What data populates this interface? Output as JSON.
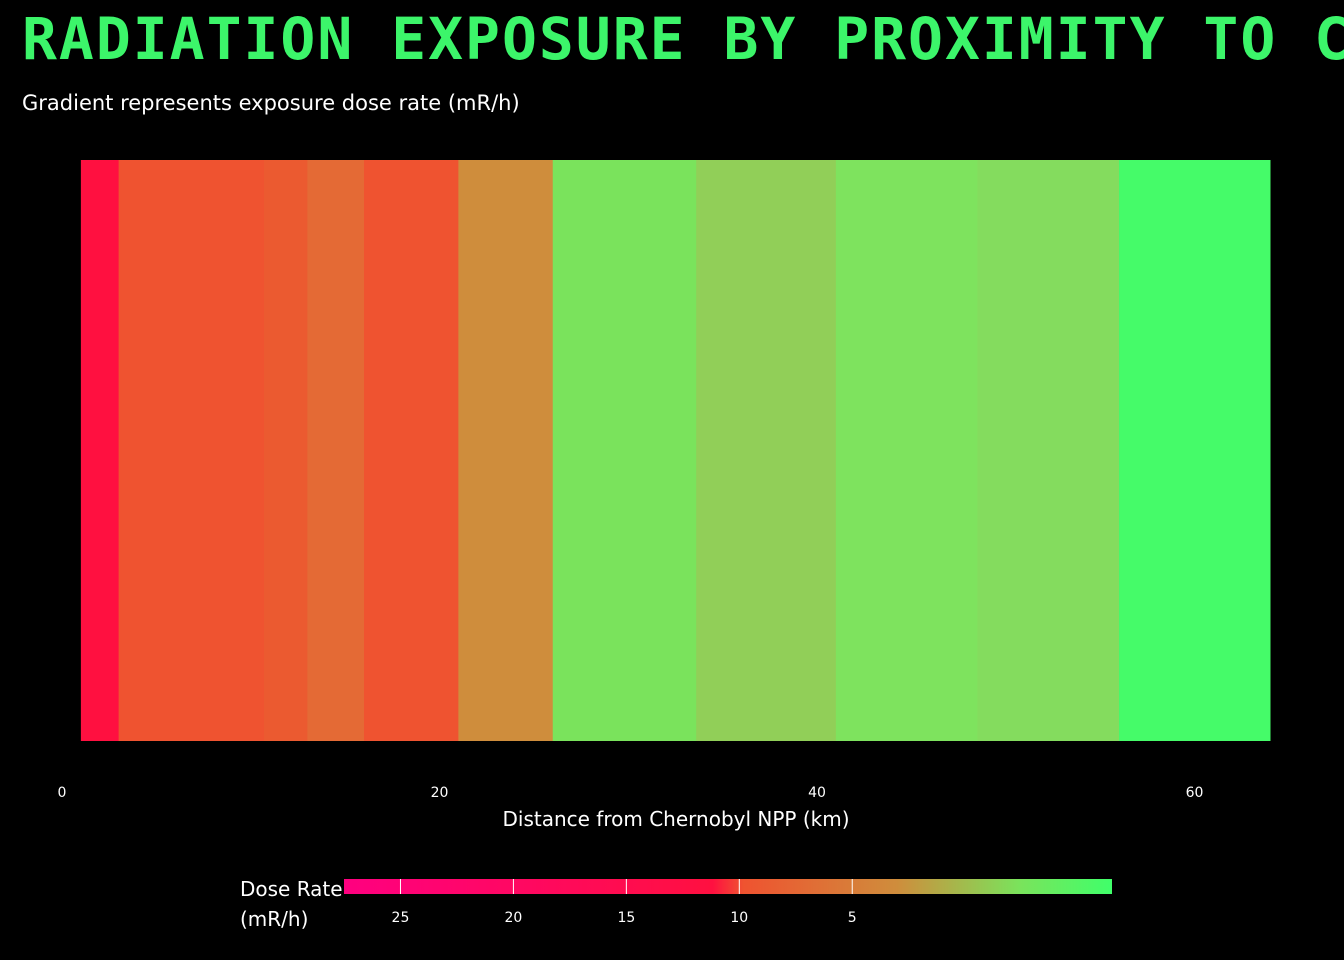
{
  "chart_data": {
    "type": "heatmap",
    "title": "RADIATION EXPOSURE BY PROXIMITY TO CH",
    "subtitle": "Gradient represents exposure dose rate (mR/h)",
    "xlabel": "Distance from Chernobyl NPP (km)",
    "xlim": [
      0,
      64
    ],
    "x_ticks": [
      0,
      20,
      40,
      60
    ],
    "x_tick_labels": [
      "0",
      "20",
      "40",
      "60"
    ],
    "segments": [
      {
        "x_start": 1,
        "x_end": 3,
        "color": "#ff1040"
      },
      {
        "x_start": 3,
        "x_end": 10.7,
        "color": "#ef5330"
      },
      {
        "x_start": 10.7,
        "x_end": 13,
        "color": "#eb5a30"
      },
      {
        "x_start": 13,
        "x_end": 16,
        "color": "#e46a35"
      },
      {
        "x_start": 16,
        "x_end": 21,
        "color": "#ef5330"
      },
      {
        "x_start": 21,
        "x_end": 26,
        "color": "#cf8d3c"
      },
      {
        "x_start": 26,
        "x_end": 33.6,
        "color": "#7ae35c"
      },
      {
        "x_start": 33.6,
        "x_end": 41,
        "color": "#91cf58"
      },
      {
        "x_start": 41,
        "x_end": 48.5,
        "color": "#7ee35e"
      },
      {
        "x_start": 48.5,
        "x_end": 56,
        "color": "#84dc5e"
      },
      {
        "x_start": 56,
        "x_end": 64,
        "color": "#45fb69"
      }
    ],
    "colorbar": {
      "title_line1": "Dose Rate",
      "title_line2": "(mR/h)",
      "ticks": [
        25,
        20,
        15,
        10,
        5
      ],
      "tick_labels": [
        "25",
        "20",
        "15",
        "10",
        "5"
      ],
      "range": [
        27.5,
        -6.5
      ],
      "stops": [
        {
          "offset": 0,
          "color": "#ff0080"
        },
        {
          "offset": 0.48,
          "color": "#ff1040"
        },
        {
          "offset": 0.52,
          "color": "#ef5330"
        },
        {
          "offset": 0.72,
          "color": "#cf8d3c"
        },
        {
          "offset": 0.88,
          "color": "#7ae35c"
        },
        {
          "offset": 1,
          "color": "#40ff6a"
        }
      ]
    },
    "colors": {
      "background": "#000000",
      "title": "#3cf56a",
      "text": "#ffffff"
    }
  }
}
